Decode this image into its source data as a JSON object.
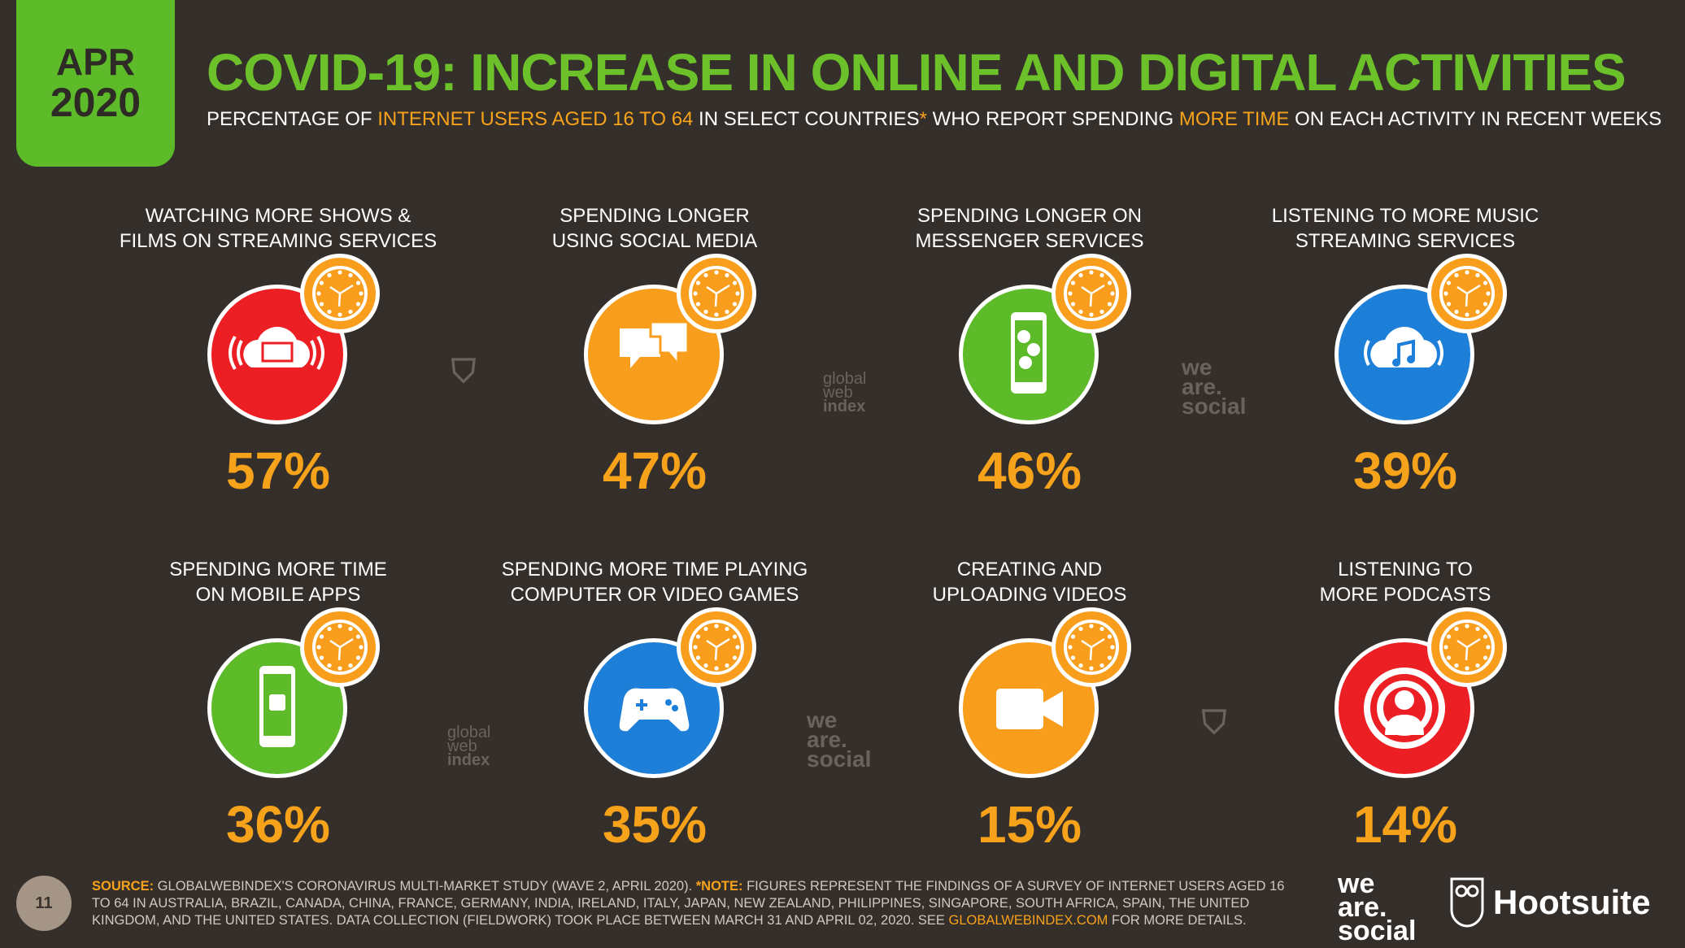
{
  "header": {
    "month": "APR",
    "year": "2020",
    "title": "COVID-19: INCREASE IN ONLINE AND DIGITAL ACTIVITIES",
    "subtitle": {
      "p1": "PERCENTAGE OF ",
      "h1": "INTERNET USERS AGED 16 TO 64",
      "p2": " IN SELECT COUNTRIES",
      "star": "*",
      "p3": " WHO REPORT SPENDING ",
      "h2": "MORE TIME",
      "p4": " ON EACH ACTIVITY IN RECENT WEEKS"
    }
  },
  "activities": [
    {
      "line1": "WATCHING MORE SHOWS &",
      "line2": "FILMS ON STREAMING SERVICES",
      "value": "57%",
      "icon": "cloud-tv-icon",
      "color": "#ec1f24"
    },
    {
      "line1": "SPENDING LONGER",
      "line2": "USING SOCIAL MEDIA",
      "value": "47%",
      "icon": "chat-bubbles-icon",
      "color": "#f99d1c"
    },
    {
      "line1": "SPENDING LONGER ON",
      "line2": "MESSENGER SERVICES",
      "value": "46%",
      "icon": "phone-chat-icon",
      "color": "#5dbb2a"
    },
    {
      "line1": "LISTENING TO MORE MUSIC",
      "line2": "STREAMING SERVICES",
      "value": "39%",
      "icon": "cloud-music-icon",
      "color": "#1e7fd8"
    },
    {
      "line1": "SPENDING MORE TIME",
      "line2": "ON MOBILE APPS",
      "value": "36%",
      "icon": "mobile-app-icon",
      "color": "#5dbb2a"
    },
    {
      "line1": "SPENDING MORE TIME PLAYING",
      "line2": "COMPUTER OR VIDEO GAMES",
      "value": "35%",
      "icon": "gamepad-icon",
      "color": "#1e7fd8"
    },
    {
      "line1": "CREATING AND",
      "line2": "UPLOADING VIDEOS",
      "value": "15%",
      "icon": "video-camera-icon",
      "color": "#f99d1c"
    },
    {
      "line1": "LISTENING TO",
      "line2": "MORE PODCASTS",
      "value": "14%",
      "icon": "podcast-icon",
      "color": "#ec1f24"
    }
  ],
  "watermarks": {
    "gwi": [
      "global",
      "web",
      "index"
    ],
    "was": [
      "we",
      "are.",
      "social"
    ]
  },
  "footer": {
    "page": "11",
    "source_label": "SOURCE:",
    "source": " GLOBALWEBINDEX'S CORONAVIRUS MULTI-MARKET STUDY (WAVE 2, APRIL 2020). ",
    "note_label": "*NOTE:",
    "note": " FIGURES REPRESENT THE FINDINGS OF A SURVEY OF INTERNET USERS AGED 16 TO 64 IN AUSTRALIA, BRAZIL, CANADA, CHINA, FRANCE, GERMANY, INDIA, IRELAND, ITALY, JAPAN, NEW ZEALAND, PHILIPPINES, SINGAPORE, SOUTH AFRICA, SPAIN, THE UNITED KINGDOM, AND THE UNITED STATES. DATA COLLECTION (FIELDWORK) TOOK PLACE BETWEEN MARCH 31 AND APRIL 02, 2020. SEE ",
    "link": "GLOBALWEBINDEX.COM",
    "end": " FOR MORE DETAILS.",
    "logo_was": [
      "we",
      "are.",
      "social"
    ],
    "logo_hootsuite": "Hootsuite"
  },
  "colors": {
    "background": "#352f2b",
    "accent_green": "#6cc12a",
    "accent_orange": "#f7a21b"
  }
}
